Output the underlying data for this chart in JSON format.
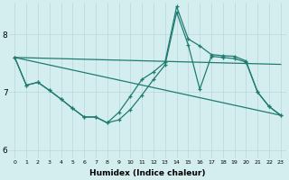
{
  "background_color": "#d4eef0",
  "grid_color": "#b8d8dc",
  "line_color": "#1e7b70",
  "xlabel": "Humidex (Indice chaleur)",
  "xlim": [
    -0.5,
    23.5
  ],
  "ylim": [
    5.85,
    8.55
  ],
  "yticks": [
    6,
    7,
    8
  ],
  "xticks": [
    0,
    1,
    2,
    3,
    4,
    5,
    6,
    7,
    8,
    9,
    10,
    11,
    12,
    13,
    14,
    15,
    16,
    17,
    18,
    19,
    20,
    21,
    22,
    23
  ],
  "line1_x": [
    0,
    1,
    2,
    3,
    4,
    5,
    6,
    7,
    8,
    9,
    10,
    11,
    12,
    13,
    14,
    15,
    16,
    17,
    18,
    19,
    20,
    21,
    22,
    23
  ],
  "line1_y": [
    7.6,
    7.12,
    7.17,
    7.03,
    6.88,
    6.72,
    6.57,
    6.57,
    6.47,
    6.52,
    6.7,
    6.95,
    7.22,
    7.47,
    8.38,
    7.82,
    7.05,
    7.62,
    7.6,
    7.58,
    7.52,
    7.0,
    6.75,
    6.6
  ],
  "line2_x": [
    0,
    1,
    2,
    3,
    4,
    5,
    6,
    7,
    8,
    9,
    10,
    11,
    12,
    13,
    14,
    15,
    16,
    17,
    18,
    19,
    20,
    21,
    22,
    23
  ],
  "line2_y": [
    7.6,
    7.12,
    7.17,
    7.03,
    6.88,
    6.72,
    6.57,
    6.57,
    6.47,
    6.65,
    6.93,
    7.22,
    7.35,
    7.52,
    8.48,
    7.92,
    7.8,
    7.65,
    7.63,
    7.62,
    7.54,
    7.0,
    6.75,
    6.6
  ],
  "line3_x": [
    0,
    23
  ],
  "line3_y": [
    7.6,
    7.48
  ],
  "line4_x": [
    0,
    23
  ],
  "line4_y": [
    7.6,
    6.6
  ]
}
